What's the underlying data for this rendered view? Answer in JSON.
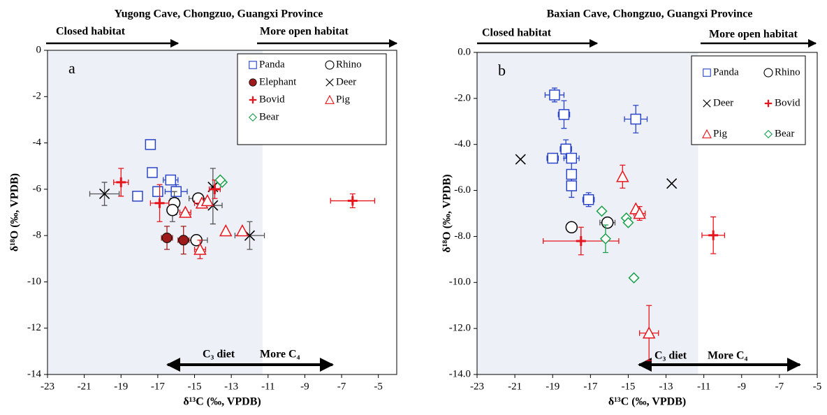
{
  "chart_data": [
    {
      "type": "scatter",
      "title": "Yugong Cave, Chongzuo, Guangxi Province",
      "panel_label": "a",
      "x_label": "δ¹³C (‰, VPDB)",
      "y_label": "δ¹⁸O (‰, VPDB)",
      "annotations": [
        "Closed habitat",
        "More open habitat",
        "C₃ diet",
        "More C₄"
      ],
      "xlim": [
        -23,
        -4
      ],
      "ylim": [
        -14,
        0
      ],
      "xticks": [
        -23,
        -21,
        -19,
        -17,
        -15,
        -13,
        -11,
        -9,
        -7,
        -5
      ],
      "yticks": [
        0,
        -2,
        -4,
        -6,
        -8,
        -10,
        -12,
        -14
      ],
      "shaded_region": [
        -23,
        -11.3
      ],
      "series": [
        {
          "name": "Panda",
          "color": "#2b45c8",
          "marker": "square",
          "x": [
            -17.4,
            -17.3,
            -16.3,
            -16.0,
            -17.0,
            -18.1
          ],
          "y": [
            -4.07,
            -5.28,
            -5.6,
            -6.1,
            -6.1,
            -6.3
          ],
          "x_err": [
            null,
            null,
            0.4,
            0.6,
            null,
            null
          ],
          "y_err": [
            null,
            null,
            null,
            0.3,
            null,
            null
          ]
        },
        {
          "name": "Rhino",
          "color": "#000000",
          "marker": "circle",
          "x": [
            -16.1,
            -16.2,
            -14.8,
            -14.9
          ],
          "y": [
            -6.6,
            -6.9,
            -6.4,
            -8.2
          ],
          "x_err": [
            null,
            null,
            0.5,
            0.6
          ],
          "y_err": [
            0.5,
            0.5,
            null,
            null
          ]
        },
        {
          "name": "Elephant",
          "color": "#9e1a1a",
          "marker": "filled-circle",
          "x": [
            -16.5,
            -15.6
          ],
          "y": [
            -8.1,
            -8.2
          ],
          "x_err": [
            0.3,
            0.3
          ],
          "y_err": [
            0.5,
            0.6
          ]
        },
        {
          "name": "Deer",
          "color": "#000000",
          "marker": "cross",
          "x": [
            -19.9,
            -14.0,
            -14.0,
            -12.0
          ],
          "y": [
            -6.2,
            -6.7,
            -5.9,
            -8.0
          ],
          "x_err": [
            0.8,
            0.5,
            null,
            0.8
          ],
          "y_err": [
            0.5,
            0.8,
            0.8,
            0.6
          ]
        },
        {
          "name": "Bovid",
          "color": "#e8141c",
          "marker": "plus",
          "x": [
            -19.0,
            -16.9,
            -13.9,
            -6.4
          ],
          "y": [
            -5.7,
            -6.6,
            -6.0,
            -6.5
          ],
          "x_err": [
            0.4,
            0.5,
            0.3,
            1.2
          ],
          "y_err": [
            0.6,
            0.8,
            0.4,
            0.3
          ]
        },
        {
          "name": "Pig",
          "color": "#e8141c",
          "marker": "triangle",
          "x": [
            -15.5,
            -14.6,
            -14.3,
            -14.7,
            -13.3,
            -12.4
          ],
          "y": [
            -7.0,
            -6.6,
            -6.5,
            -8.6,
            -7.8,
            -7.8
          ],
          "x_err": [
            0.3,
            0.4,
            null,
            0.3,
            null,
            null
          ],
          "y_err": [
            null,
            null,
            null,
            0.4,
            null,
            null
          ]
        },
        {
          "name": "Bear",
          "color": "#1aa04a",
          "marker": "diamond",
          "x": [
            -13.5,
            -13.6
          ],
          "y": [
            -5.7,
            -5.6
          ],
          "x_err": [
            null,
            null
          ],
          "y_err": [
            null,
            null
          ]
        }
      ]
    },
    {
      "type": "scatter",
      "title": "Baxian Cave, Chongzuo, Guangxi Province",
      "panel_label": "b",
      "x_label": "δ¹³C (‰, VPDB)",
      "y_label": "δ¹⁸O (‰, VPDB)",
      "annotations": [
        "Closed habitat",
        "More open habitat",
        "C₃ diet",
        "More C₄"
      ],
      "xlim": [
        -23,
        -5
      ],
      "ylim": [
        -14,
        0
      ],
      "xticks": [
        -23,
        -21,
        -19,
        -17,
        -15,
        -13,
        -11,
        -9,
        -7,
        -5
      ],
      "yticks": [
        {
          "value": 0,
          "label": "0.0"
        },
        {
          "value": -2,
          "label": "-2.0"
        },
        {
          "value": -4,
          "label": "-4.0"
        },
        {
          "value": -6,
          "label": "-6.0"
        },
        {
          "value": -8,
          "label": "-8.0"
        },
        {
          "value": -10,
          "label": "-10.0"
        },
        {
          "value": -12,
          "label": "-12.0"
        },
        {
          "value": -14,
          "label": "-14.0"
        }
      ],
      "shaded_region": [
        -23,
        -11.3
      ],
      "series": [
        {
          "name": "Panda",
          "color": "#2b45c8",
          "marker": "square",
          "x": [
            -18.9,
            -18.4,
            -18.3,
            -18.0,
            -19.0,
            -18.0,
            -18.0,
            -17.1,
            -14.6
          ],
          "y": [
            -1.85,
            -2.7,
            -4.2,
            -4.6,
            -4.6,
            -5.3,
            -5.8,
            -6.4,
            -2.9
          ],
          "x_err": [
            0.5,
            0.3,
            0.3,
            0.4,
            0.3,
            null,
            null,
            0.3,
            0.6
          ],
          "y_err": [
            0.3,
            0.6,
            0.4,
            null,
            null,
            0.5,
            0.5,
            0.3,
            0.6
          ]
        },
        {
          "name": "Rhino",
          "color": "#000000",
          "marker": "circle",
          "x": [
            -18.0,
            -16.1
          ],
          "y": [
            -7.6,
            -7.4
          ],
          "x_err": [
            null,
            0.4
          ],
          "y_err": [
            null,
            null
          ]
        },
        {
          "name": "Deer",
          "color": "#000000",
          "marker": "cross",
          "x": [
            -20.7,
            -12.7
          ],
          "y": [
            -4.65,
            -5.7
          ],
          "x_err": [
            null,
            null
          ],
          "y_err": [
            null,
            null
          ]
        },
        {
          "name": "Bovid",
          "color": "#e8141c",
          "marker": "plus",
          "x": [
            -17.5,
            -10.5
          ],
          "y": [
            -8.2,
            -7.95
          ],
          "x_err": [
            2.0,
            0.6
          ],
          "y_err": [
            0.6,
            0.8
          ]
        },
        {
          "name": "Pig",
          "color": "#e8141c",
          "marker": "triangle",
          "x": [
            -15.3,
            -14.6,
            -14.4,
            -13.9
          ],
          "y": [
            -5.4,
            -6.8,
            -7.0,
            -12.2
          ],
          "x_err": [
            null,
            null,
            0.3,
            0.5
          ],
          "y_err": [
            0.5,
            null,
            0.3,
            1.2
          ]
        },
        {
          "name": "Bear",
          "color": "#1aa04a",
          "marker": "diamond",
          "x": [
            -16.4,
            -16.2,
            -15.1,
            -15.0,
            -14.7
          ],
          "y": [
            -6.9,
            -8.1,
            -7.2,
            -7.4,
            -9.8
          ],
          "x_err": [
            null,
            null,
            null,
            null,
            null
          ],
          "y_err": [
            null,
            0.6,
            null,
            null,
            null
          ]
        }
      ]
    }
  ]
}
